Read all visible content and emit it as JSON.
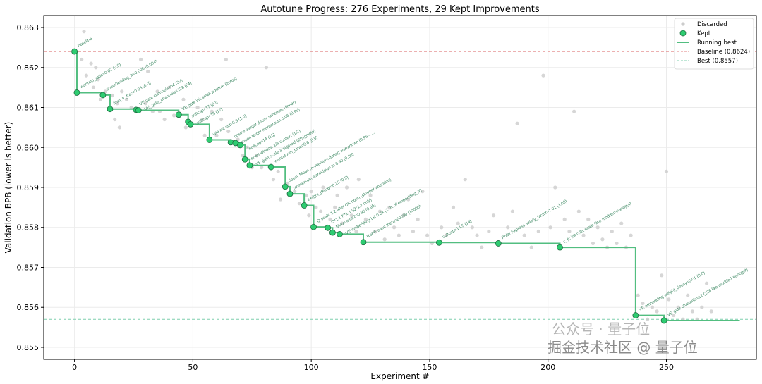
{
  "chart_data": {
    "type": "scatter",
    "title": "Autotune Progress: 276 Experiments, 29 Kept Improvements",
    "xlabel": "Experiment #",
    "ylabel": "Validation BPB (lower is better)",
    "xlim": [
      -13,
      288
    ],
    "ylim": [
      0.8547,
      0.8633
    ],
    "xticks": [
      "0",
      "50",
      "100",
      "150",
      "200",
      "250"
    ],
    "xtick_values": [
      0,
      50,
      100,
      150,
      200,
      250
    ],
    "yticks": [
      "0.855",
      "0.856",
      "0.857",
      "0.858",
      "0.859",
      "0.860",
      "0.861",
      "0.862",
      "0.863"
    ],
    "ytick_values": [
      0.855,
      0.856,
      0.857,
      0.858,
      0.859,
      0.86,
      0.861,
      0.862,
      0.863
    ],
    "grid": true,
    "legend_position": "top-right",
    "legend": [
      "Discarded",
      "Kept",
      "Running best",
      "Baseline (0.8624)",
      "Best (0.8557)"
    ],
    "baseline": 0.8624,
    "best": 0.8557,
    "colors": {
      "kept": "#2ecc71",
      "kept_edge": "#1e6b40",
      "running": "#52be80",
      "discarded": "#cccccc",
      "baseline": "#e08080",
      "best": "#7fcfae",
      "label": "#3f8a65"
    },
    "kept": [
      {
        "x": 0,
        "y": 0.8624,
        "label": "baseline"
      },
      {
        "x": 1,
        "y": 0.86137,
        "label": "warmup_ratio=0.02 (0.0)"
      },
      {
        "x": 12,
        "y": 0.86131,
        "label": "unembedding_lr=0.006 (0.004)"
      },
      {
        "x": 15,
        "y": 0.86096,
        "label": "final_lr_frac=0.05 (0.0)"
      },
      {
        "x": 26,
        "y": 0.86094,
        "label": "VE gate channels=64 (32)"
      },
      {
        "x": 27,
        "y": 0.86093,
        "label": "VE_gate_channels=128 (64)"
      },
      {
        "x": 44,
        "y": 0.86082,
        "label": "VE gate init small positive (zeros)"
      },
      {
        "x": 48,
        "y": 0.86064,
        "label": "softcap=17 (20)"
      },
      {
        "x": 49,
        "y": 0.86058,
        "label": "softcap=15 (17)"
      },
      {
        "x": 57,
        "y": 0.86019,
        "label": "wte init std=0.8 (1.0)"
      },
      {
        "x": 66,
        "y": 0.86013,
        "label": "cosine weight decay schedule (linear)"
      },
      {
        "x": 68,
        "y": 0.86011,
        "label": "muon target momentum 0.96 (0.95)"
      },
      {
        "x": 70,
        "y": 0.86006,
        "label": "softcap=14 (15)"
      },
      {
        "x": 72,
        "y": 0.8597,
        "label": "short window 1/3 context (1/2)"
      },
      {
        "x": 74,
        "y": 0.85955,
        "label": "VE gate scale 3*sigmoid (2*sigmoid)"
      },
      {
        "x": 83,
        "y": 0.85951,
        "label": "warmdown_ratio=0.6 (0.5)"
      },
      {
        "x": 89,
        "y": 0.85902,
        "label": "decay Muon momentum during warmdown (0.96→..."
      },
      {
        "x": 91,
        "y": 0.85884,
        "label": "momentum warmdown to 0.90 (0.85)"
      },
      {
        "x": 97,
        "y": 0.85855,
        "label": "weight_decay=0.25 (0.2)"
      },
      {
        "x": 101,
        "y": 0.85801,
        "label": "Q scale 1.2 after QK norm (sharper attention)"
      },
      {
        "x": 107,
        "y": 0.85799,
        "label": "Q*1.1 K*1.1 (Q*1.2 only)"
      },
      {
        "x": 109,
        "y": 0.85787,
        "label": "Muon beta2=0.90 (0.95)"
      },
      {
        "x": 112,
        "y": 0.85783,
        "label": "VE embedding LR 0.3x (1.0x of embedding_lr)"
      },
      {
        "x": 122,
        "y": 0.85763,
        "label": "RoPE base theta=20000 (10000)"
      },
      {
        "x": 154,
        "y": 0.85762,
        "label": "softcap=14.5 (14)"
      },
      {
        "x": 179,
        "y": 0.8576,
        "label": "Polar Express safety_factor=1.01 (1.02)"
      },
      {
        "x": 205,
        "y": 0.8575,
        "label": "c_fc init 0.5x scale (like modded-nanogpt)"
      },
      {
        "x": 237,
        "y": 0.8558,
        "label": "VE embedding weight_decay=0.01 (0.0)"
      },
      {
        "x": 249,
        "y": 0.85567,
        "label": "VE gate channels=12 (128 like modded-nanogpt)"
      }
    ],
    "discarded": [
      [
        4,
        0.8629
      ],
      [
        3,
        0.8622
      ],
      [
        7,
        0.8621
      ],
      [
        9,
        0.862
      ],
      [
        5,
        0.8618
      ],
      [
        10,
        0.8617
      ],
      [
        8,
        0.8615
      ],
      [
        13,
        0.8614
      ],
      [
        11,
        0.8612
      ],
      [
        16,
        0.8613
      ],
      [
        18,
        0.8611
      ],
      [
        20,
        0.8614
      ],
      [
        22,
        0.8612
      ],
      [
        24,
        0.861
      ],
      [
        17,
        0.8607
      ],
      [
        19,
        0.8605
      ],
      [
        28,
        0.8622
      ],
      [
        30,
        0.8611
      ],
      [
        31,
        0.8619
      ],
      [
        33,
        0.8609
      ],
      [
        35,
        0.8614
      ],
      [
        36,
        0.8609
      ],
      [
        38,
        0.8607
      ],
      [
        40,
        0.8615
      ],
      [
        42,
        0.8608
      ],
      [
        46,
        0.8612
      ],
      [
        47,
        0.8605
      ],
      [
        52,
        0.861
      ],
      [
        54,
        0.8607
      ],
      [
        55,
        0.8603
      ],
      [
        58,
        0.8609
      ],
      [
        60,
        0.8603
      ],
      [
        62,
        0.8607
      ],
      [
        64,
        0.8622
      ],
      [
        65,
        0.8604
      ],
      [
        69,
        0.8602
      ],
      [
        71,
        0.8598
      ],
      [
        73,
        0.86
      ],
      [
        75,
        0.8595
      ],
      [
        77,
        0.8598
      ],
      [
        79,
        0.8595
      ],
      [
        81,
        0.862
      ],
      [
        84,
        0.8592
      ],
      [
        86,
        0.8594
      ],
      [
        87,
        0.8587
      ],
      [
        90,
        0.8591
      ],
      [
        93,
        0.8589
      ],
      [
        95,
        0.8586
      ],
      [
        98,
        0.8588
      ],
      [
        99,
        0.8583
      ],
      [
        100,
        0.8589
      ],
      [
        102,
        0.8585
      ],
      [
        104,
        0.8584
      ],
      [
        105,
        0.859
      ],
      [
        108,
        0.8582
      ],
      [
        110,
        0.8585
      ],
      [
        111,
        0.8588
      ],
      [
        113,
        0.8581
      ],
      [
        115,
        0.859
      ],
      [
        117,
        0.8583
      ],
      [
        119,
        0.8579
      ],
      [
        120,
        0.8592
      ],
      [
        123,
        0.8582
      ],
      [
        125,
        0.8588
      ],
      [
        127,
        0.8579
      ],
      [
        129,
        0.8584
      ],
      [
        131,
        0.8577
      ],
      [
        133,
        0.8585
      ],
      [
        135,
        0.858
      ],
      [
        137,
        0.8578
      ],
      [
        139,
        0.8583
      ],
      [
        141,
        0.8587
      ],
      [
        143,
        0.8579
      ],
      [
        145,
        0.8582
      ],
      [
        147,
        0.8589
      ],
      [
        149,
        0.8578
      ],
      [
        151,
        0.8576
      ],
      [
        155,
        0.858
      ],
      [
        157,
        0.8578
      ],
      [
        160,
        0.8585
      ],
      [
        162,
        0.8581
      ],
      [
        165,
        0.8592
      ],
      [
        168,
        0.858
      ],
      [
        170,
        0.8578
      ],
      [
        172,
        0.8575
      ],
      [
        175,
        0.8579
      ],
      [
        177,
        0.8583
      ],
      [
        180,
        0.8576
      ],
      [
        183,
        0.858
      ],
      [
        185,
        0.8584
      ],
      [
        187,
        0.8606
      ],
      [
        190,
        0.8578
      ],
      [
        193,
        0.8575
      ],
      [
        196,
        0.8579
      ],
      [
        198,
        0.8618
      ],
      [
        201,
        0.858
      ],
      [
        203,
        0.859
      ],
      [
        207,
        0.8582
      ],
      [
        209,
        0.8579
      ],
      [
        211,
        0.8609
      ],
      [
        213,
        0.8584
      ],
      [
        215,
        0.8578
      ],
      [
        217,
        0.8582
      ],
      [
        219,
        0.8576
      ],
      [
        221,
        0.858
      ],
      [
        223,
        0.8577
      ],
      [
        225,
        0.8575
      ],
      [
        227,
        0.8579
      ],
      [
        229,
        0.8576
      ],
      [
        231,
        0.8581
      ],
      [
        233,
        0.8575
      ],
      [
        235,
        0.8578
      ],
      [
        238,
        0.8563
      ],
      [
        240,
        0.8561
      ],
      [
        242,
        0.8557
      ],
      [
        244,
        0.856
      ],
      [
        246,
        0.8559
      ],
      [
        248,
        0.8568
      ],
      [
        250,
        0.8594
      ],
      [
        251,
        0.8562
      ],
      [
        253,
        0.8558
      ],
      [
        255,
        0.856
      ],
      [
        257,
        0.8557
      ],
      [
        259,
        0.8563
      ],
      [
        261,
        0.8559
      ],
      [
        263,
        0.8557
      ],
      [
        265,
        0.856
      ],
      [
        267,
        0.8566
      ],
      [
        269,
        0.8559
      ]
    ]
  },
  "watermarks": [
    "公众号 · 量子位",
    "掘金技术社区 @ 量子位"
  ]
}
